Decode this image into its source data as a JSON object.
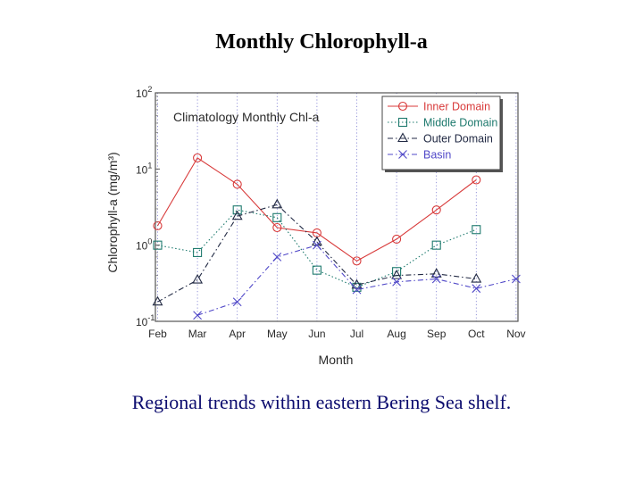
{
  "slide": {
    "title": "Monthly Chlorophyll-a",
    "caption": "Regional trends within eastern Bering Sea shelf."
  },
  "chart_data": {
    "type": "line",
    "title": "Climatology Monthly Chl-a",
    "xlabel": "Month",
    "ylabel": "Chlorophyll-a (mg/m³)",
    "yscale": "log",
    "ylim": [
      0.1,
      100
    ],
    "y_ticks": [
      {
        "value": 0.1,
        "base": "10",
        "exp": "-1"
      },
      {
        "value": 1,
        "base": "10",
        "exp": "0"
      },
      {
        "value": 10,
        "base": "10",
        "exp": "1"
      },
      {
        "value": 100,
        "base": "10",
        "exp": "2"
      }
    ],
    "categories": [
      "Feb",
      "Mar",
      "Apr",
      "May",
      "Jun",
      "Jul",
      "Aug",
      "Sep",
      "Oct",
      "Nov"
    ],
    "grid": "vertical dotted",
    "legend_position": "top-right",
    "series": [
      {
        "name": "Inner Domain",
        "color": "#d83a3a",
        "marker": "circle",
        "dash": "solid",
        "values": [
          1.8,
          14,
          6.3,
          1.7,
          1.45,
          0.62,
          1.2,
          2.9,
          7.2,
          null
        ]
      },
      {
        "name": "Middle Domain",
        "color": "#1e7a6e",
        "marker": "square",
        "dash": "dotted",
        "values": [
          1.0,
          0.8,
          2.9,
          2.3,
          0.47,
          0.28,
          0.45,
          1.0,
          1.6,
          null
        ]
      },
      {
        "name": "Outer Domain",
        "color": "#222a44",
        "marker": "triangle",
        "dash": "dashdot",
        "values": [
          0.18,
          0.35,
          2.4,
          3.4,
          1.1,
          0.3,
          0.4,
          0.42,
          0.36,
          null
        ]
      },
      {
        "name": "Basin",
        "color": "#5048c8",
        "marker": "x",
        "dash": "dashdot",
        "values": [
          null,
          0.12,
          0.18,
          0.7,
          1.0,
          0.26,
          0.33,
          0.36,
          0.27,
          0.36
        ]
      }
    ]
  }
}
